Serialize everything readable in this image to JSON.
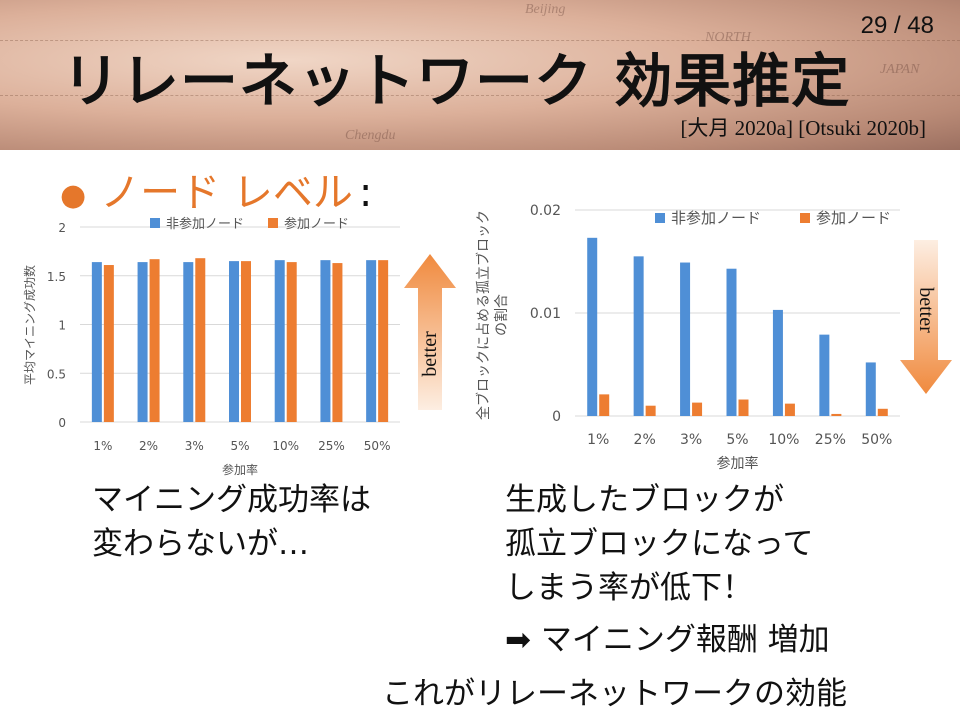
{
  "slide": {
    "page_number": "29 / 48",
    "title": "リレーネットワーク 効果推定",
    "citation": "[大月 2020a] [Otsuki 2020b]",
    "bullet": "ノード レベル",
    "bullet_colon": ":",
    "left_caption": [
      "マイニング成功率は",
      "変わらないが…"
    ],
    "right_caption": [
      "生成したブロックが",
      "孤立ブロックになって",
      "しまう率が低下！"
    ],
    "arrow_line": "➡ マイニング報酬 増加",
    "conclusion": "これがリレーネットワークの効能",
    "left_arrow_label": "better",
    "right_arrow_label": "better",
    "background_map_words": [
      "Beijing",
      "NORTH",
      "JAPAN",
      "Chengdu"
    ]
  },
  "colors": {
    "non_participant": "#4f8fd6",
    "participant": "#ed7d31",
    "accent": "#e5772b",
    "arrow_light": "#fbe0cc",
    "arrow_dark": "#f08a3e"
  },
  "chart_data": [
    {
      "type": "bar",
      "ylabel": "平均マイニング成功数",
      "xlabel": "参加率",
      "categories": [
        "1%",
        "2%",
        "3%",
        "5%",
        "10%",
        "25%",
        "50%"
      ],
      "ylim": [
        0,
        2
      ],
      "yticks": [
        "0",
        "0.5",
        "1",
        "1.5",
        "2"
      ],
      "legend": "top",
      "grid": true,
      "series": [
        {
          "name": "非参加ノード",
          "color": "#4f8fd6",
          "values": [
            1.64,
            1.64,
            1.64,
            1.65,
            1.66,
            1.66,
            1.66
          ]
        },
        {
          "name": "参加ノード",
          "color": "#ed7d31",
          "values": [
            1.61,
            1.67,
            1.68,
            1.65,
            1.64,
            1.63,
            1.66
          ]
        }
      ]
    },
    {
      "type": "bar",
      "ylabel": "全ブロックに占める孤立ブロック\nの割合",
      "xlabel": "参加率",
      "categories": [
        "1%",
        "2%",
        "3%",
        "5%",
        "10%",
        "25%",
        "50%"
      ],
      "ylim": [
        0,
        0.02
      ],
      "yticks": [
        "0",
        "0.01",
        "0.02"
      ],
      "legend": "top",
      "grid": true,
      "series": [
        {
          "name": "非参加ノード",
          "color": "#4f8fd6",
          "values": [
            0.0173,
            0.0155,
            0.0149,
            0.0143,
            0.0103,
            0.0079,
            0.0052
          ]
        },
        {
          "name": "参加ノード",
          "color": "#ed7d31",
          "values": [
            0.0021,
            0.001,
            0.0013,
            0.0016,
            0.0012,
            0.0002,
            0.0007
          ]
        }
      ]
    }
  ]
}
